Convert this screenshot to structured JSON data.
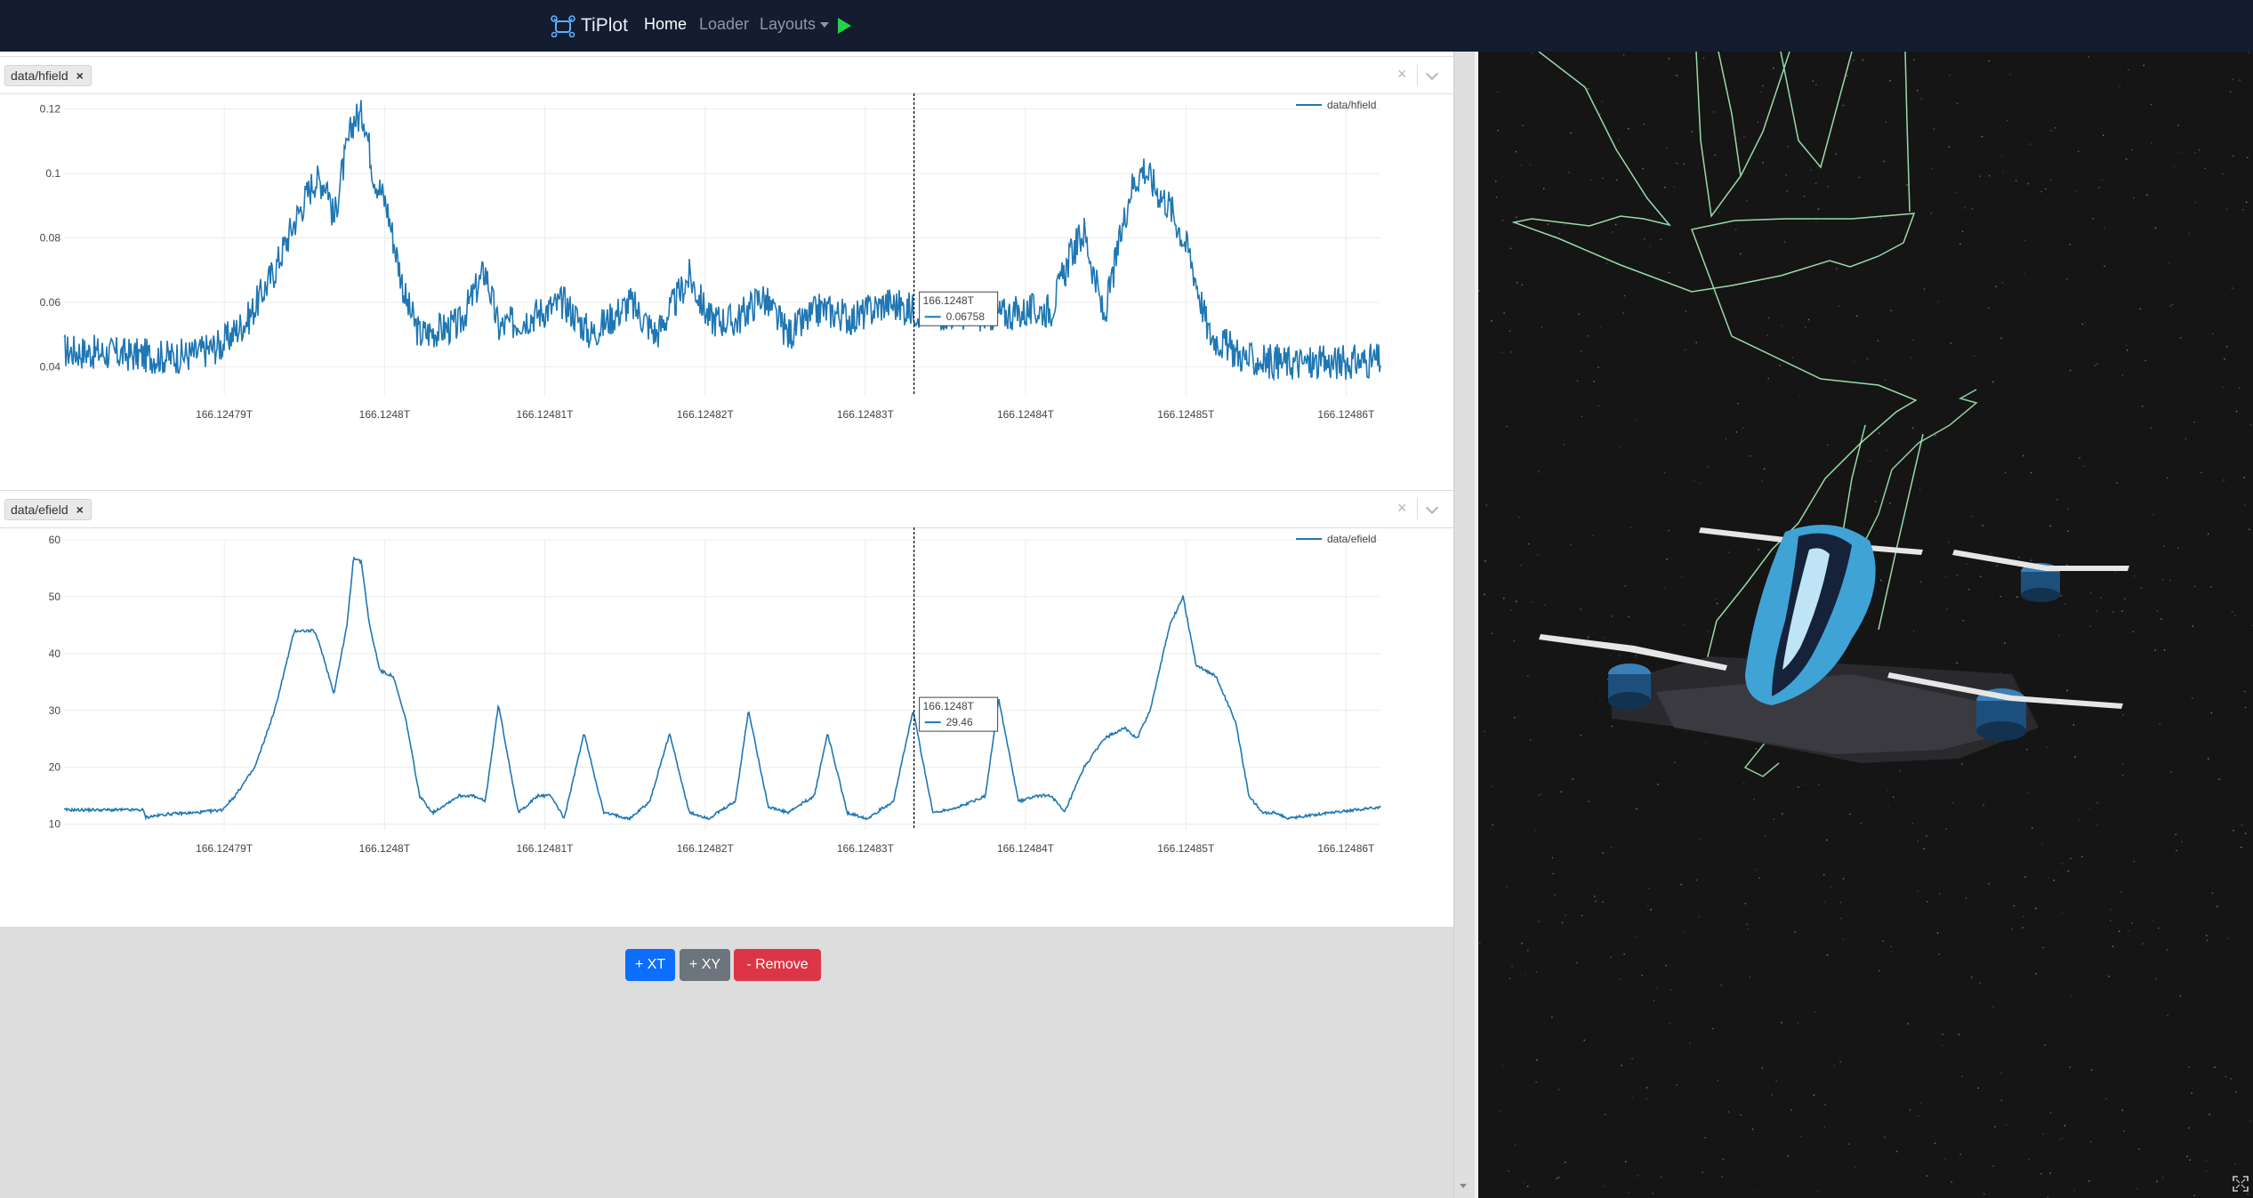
{
  "navbar": {
    "brand": "TiPlot",
    "links": {
      "home": "Home",
      "loader": "Loader",
      "layouts": "Layouts"
    },
    "brand_icon": "drone-logo-icon",
    "run_icon": "play-icon",
    "accent_color": "#22d34a"
  },
  "plots": [
    {
      "tab_label": "data/hfield",
      "tab_close": "×",
      "panel_close": "×",
      "chart_data": {
        "type": "line",
        "series": [
          {
            "name": "data/hfield",
            "color": "#1f77b4"
          }
        ],
        "x_tick_labels": [
          "166.12479T",
          "166.1248T",
          "166.12481T",
          "166.12482T",
          "166.12483T",
          "166.12484T",
          "166.12485T",
          "166.12486T"
        ],
        "y_ticks": [
          0.04,
          0.06,
          0.08,
          0.1,
          0.12
        ],
        "y_tick_labels": [
          "0.04",
          "0.06",
          "0.08",
          "0.1",
          "0.12"
        ],
        "ylim": [
          0.031,
          0.121
        ],
        "x_norm_range": [
          0,
          1
        ],
        "x_tick_positions": [
          0.1217,
          0.2435,
          0.3652,
          0.487,
          0.6087,
          0.7304,
          0.8522,
          0.9739
        ],
        "profile": [
          [
            0,
            0.045
          ],
          [
            0.04,
            0.044
          ],
          [
            0.08,
            0.043
          ],
          [
            0.1,
            0.044
          ],
          [
            0.12,
            0.047
          ],
          [
            0.14,
            0.055
          ],
          [
            0.16,
            0.07
          ],
          [
            0.175,
            0.085
          ],
          [
            0.19,
            0.098
          ],
          [
            0.2,
            0.097
          ],
          [
            0.205,
            0.085
          ],
          [
            0.21,
            0.098
          ],
          [
            0.22,
            0.117
          ],
          [
            0.228,
            0.118
          ],
          [
            0.235,
            0.1
          ],
          [
            0.245,
            0.09
          ],
          [
            0.26,
            0.06
          ],
          [
            0.27,
            0.05
          ],
          [
            0.3,
            0.053
          ],
          [
            0.32,
            0.07
          ],
          [
            0.33,
            0.052
          ],
          [
            0.35,
            0.055
          ],
          [
            0.38,
            0.06
          ],
          [
            0.4,
            0.05
          ],
          [
            0.43,
            0.06
          ],
          [
            0.45,
            0.05
          ],
          [
            0.475,
            0.068
          ],
          [
            0.49,
            0.055
          ],
          [
            0.51,
            0.054
          ],
          [
            0.53,
            0.062
          ],
          [
            0.55,
            0.05
          ],
          [
            0.575,
            0.058
          ],
          [
            0.6,
            0.055
          ],
          [
            0.625,
            0.06
          ],
          [
            0.64,
            0.058
          ],
          [
            0.66,
            0.057
          ],
          [
            0.7,
            0.056
          ],
          [
            0.73,
            0.057
          ],
          [
            0.75,
            0.058
          ],
          [
            0.765,
            0.075
          ],
          [
            0.775,
            0.082
          ],
          [
            0.79,
            0.055
          ],
          [
            0.8,
            0.075
          ],
          [
            0.81,
            0.095
          ],
          [
            0.82,
            0.102
          ],
          [
            0.83,
            0.095
          ],
          [
            0.84,
            0.09
          ],
          [
            0.855,
            0.075
          ],
          [
            0.87,
            0.05
          ],
          [
            0.9,
            0.042
          ],
          [
            0.95,
            0.041
          ],
          [
            1,
            0.042
          ]
        ],
        "noise_amplitude": 0.0055,
        "cursor": {
          "x": 0.6457,
          "label": "166.1248T",
          "value": "0.06758",
          "series": "data/hfield"
        }
      }
    },
    {
      "tab_label": "data/efield",
      "tab_close": "×",
      "panel_close": "×",
      "chart_data": {
        "type": "line",
        "series": [
          {
            "name": "data/efield",
            "color": "#1f77b4"
          }
        ],
        "x_tick_labels": [
          "166.12479T",
          "166.1248T",
          "166.12481T",
          "166.12482T",
          "166.12483T",
          "166.12484T",
          "166.12485T",
          "166.12486T"
        ],
        "y_ticks": [
          10,
          20,
          30,
          40,
          50,
          60
        ],
        "y_tick_labels": [
          "10",
          "20",
          "30",
          "40",
          "50",
          "60"
        ],
        "ylim": [
          9,
          60
        ],
        "x_norm_range": [
          0,
          1
        ],
        "x_tick_positions": [
          0.1217,
          0.2435,
          0.3652,
          0.487,
          0.6087,
          0.7304,
          0.8522,
          0.9739
        ],
        "profile": [
          [
            0,
            12.5
          ],
          [
            0.06,
            12.5
          ],
          [
            0.062,
            11.2
          ],
          [
            0.08,
            11.8
          ],
          [
            0.1,
            12
          ],
          [
            0.12,
            12.5
          ],
          [
            0.13,
            15
          ],
          [
            0.145,
            20
          ],
          [
            0.16,
            30
          ],
          [
            0.175,
            44
          ],
          [
            0.19,
            44
          ],
          [
            0.195,
            41
          ],
          [
            0.205,
            33
          ],
          [
            0.215,
            45
          ],
          [
            0.22,
            57
          ],
          [
            0.226,
            56
          ],
          [
            0.232,
            45
          ],
          [
            0.24,
            37
          ],
          [
            0.25,
            36
          ],
          [
            0.26,
            28
          ],
          [
            0.27,
            15
          ],
          [
            0.28,
            12
          ],
          [
            0.3,
            15
          ],
          [
            0.31,
            15
          ],
          [
            0.32,
            14
          ],
          [
            0.33,
            31
          ],
          [
            0.345,
            12
          ],
          [
            0.36,
            15
          ],
          [
            0.37,
            15
          ],
          [
            0.38,
            11
          ],
          [
            0.395,
            26
          ],
          [
            0.41,
            12
          ],
          [
            0.43,
            11
          ],
          [
            0.445,
            14
          ],
          [
            0.46,
            26
          ],
          [
            0.475,
            12
          ],
          [
            0.49,
            11
          ],
          [
            0.51,
            14
          ],
          [
            0.52,
            30
          ],
          [
            0.535,
            13
          ],
          [
            0.55,
            12
          ],
          [
            0.57,
            15
          ],
          [
            0.58,
            26
          ],
          [
            0.595,
            12
          ],
          [
            0.61,
            11
          ],
          [
            0.63,
            14
          ],
          [
            0.645,
            30
          ],
          [
            0.66,
            12
          ],
          [
            0.68,
            13
          ],
          [
            0.7,
            15
          ],
          [
            0.71,
            32
          ],
          [
            0.725,
            14
          ],
          [
            0.74,
            15
          ],
          [
            0.75,
            15
          ],
          [
            0.76,
            12
          ],
          [
            0.775,
            20
          ],
          [
            0.79,
            25
          ],
          [
            0.805,
            27
          ],
          [
            0.815,
            25
          ],
          [
            0.825,
            30
          ],
          [
            0.84,
            45
          ],
          [
            0.85,
            50
          ],
          [
            0.86,
            38
          ],
          [
            0.875,
            36
          ],
          [
            0.89,
            28
          ],
          [
            0.9,
            15
          ],
          [
            0.91,
            12
          ],
          [
            0.92,
            12
          ],
          [
            0.93,
            11
          ],
          [
            0.96,
            12
          ],
          [
            1,
            13
          ]
        ],
        "noise_amplitude": 0.25,
        "cursor": {
          "x": 0.6457,
          "label": "166.1248T",
          "value": "29.46",
          "series": "data/efield"
        }
      }
    }
  ],
  "actions": {
    "add_xt": "+ XT",
    "add_xy": "+ XY",
    "remove": "- Remove"
  },
  "viewer": {
    "background": "#151515",
    "trajectory_color": "#a8f0b8",
    "model_colors": {
      "body": "#3fa3d6",
      "frame": "#2a2a2e",
      "rotor": "#e6e6e6"
    },
    "expand_icon": "fullscreen-icon"
  }
}
